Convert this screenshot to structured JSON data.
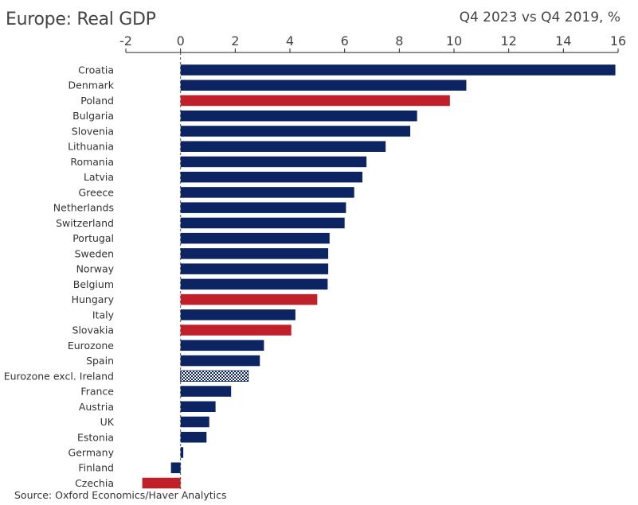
{
  "chart_data": {
    "type": "bar",
    "orientation": "horizontal",
    "title": "Europe: Real GDP",
    "subtitle": "Q4 2023 vs Q4 2019, %",
    "source": "Source: Oxford Economics/Haver Analytics",
    "xlim": [
      -2,
      16
    ],
    "xticks": [
      -2,
      0,
      2,
      4,
      6,
      8,
      10,
      12,
      14,
      16
    ],
    "grid": false,
    "colors": {
      "default": "#0c2461",
      "highlight": "#c0202a",
      "pattern": "#0c2461"
    },
    "categories": [
      "Croatia",
      "Denmark",
      "Poland",
      "Bulgaria",
      "Slovenia",
      "Lithuania",
      "Romania",
      "Latvia",
      "Greece",
      "Netherlands",
      "Switzerland",
      "Portugal",
      "Sweden",
      "Norway",
      "Belgium",
      "Hungary",
      "Italy",
      "Slovakia",
      "Eurozone",
      "Spain",
      "Eurozone excl. Ireland",
      "France",
      "Austria",
      "UK",
      "Estonia",
      "Germany",
      "Finland",
      "Czechia"
    ],
    "values": [
      15.9,
      10.45,
      9.85,
      8.65,
      8.4,
      7.5,
      6.8,
      6.65,
      6.35,
      6.05,
      6.0,
      5.45,
      5.4,
      5.4,
      5.38,
      5.0,
      4.2,
      4.05,
      3.05,
      2.9,
      2.48,
      1.85,
      1.28,
      1.05,
      0.95,
      0.1,
      -0.35,
      -1.4
    ],
    "styles": [
      "default",
      "default",
      "highlight",
      "default",
      "default",
      "default",
      "default",
      "default",
      "default",
      "default",
      "default",
      "default",
      "default",
      "default",
      "default",
      "highlight",
      "default",
      "highlight",
      "default",
      "default",
      "pattern",
      "default",
      "default",
      "default",
      "default",
      "default",
      "default",
      "highlight"
    ]
  }
}
